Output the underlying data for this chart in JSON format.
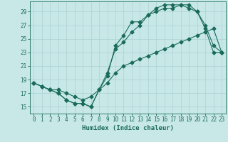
{
  "xlabel": "Humidex (Indice chaleur)",
  "bg_color": "#c8e8e8",
  "grid_color": "#afd4d4",
  "line_color": "#1a6b5a",
  "xlim": [
    -0.5,
    23.5
  ],
  "ylim": [
    14.0,
    30.5
  ],
  "xticks": [
    0,
    1,
    2,
    3,
    4,
    5,
    6,
    7,
    8,
    9,
    10,
    11,
    12,
    13,
    14,
    15,
    16,
    17,
    18,
    19,
    20,
    21,
    22,
    23
  ],
  "yticks": [
    15,
    17,
    19,
    21,
    23,
    25,
    27,
    29
  ],
  "line1_x": [
    0,
    1,
    2,
    3,
    4,
    5,
    6,
    7,
    8,
    9,
    10,
    11,
    12,
    13,
    14,
    15,
    16,
    17,
    18,
    19,
    20,
    21,
    22,
    23
  ],
  "line1_y": [
    18.5,
    18.0,
    17.5,
    17.0,
    16.0,
    15.5,
    15.5,
    15.0,
    17.5,
    19.5,
    24.0,
    25.5,
    27.5,
    27.5,
    28.5,
    29.5,
    30.0,
    30.0,
    30.0,
    30.0,
    29.0,
    26.5,
    23.0,
    23.0
  ],
  "line2_x": [
    0,
    1,
    2,
    3,
    4,
    5,
    6,
    7,
    8,
    9,
    10,
    11,
    12,
    13,
    14,
    15,
    16,
    17,
    18,
    19,
    20,
    21,
    22,
    23
  ],
  "line2_y": [
    18.5,
    18.0,
    17.5,
    17.5,
    17.0,
    16.5,
    16.0,
    16.5,
    17.5,
    20.0,
    23.5,
    24.5,
    26.0,
    27.0,
    28.5,
    29.0,
    29.5,
    29.5,
    30.0,
    29.5,
    29.0,
    27.0,
    24.0,
    23.0
  ],
  "line3_x": [
    0,
    1,
    2,
    3,
    4,
    5,
    6,
    7,
    8,
    9,
    10,
    11,
    12,
    13,
    14,
    15,
    16,
    17,
    18,
    19,
    20,
    21,
    22,
    23
  ],
  "line3_y": [
    18.5,
    18.0,
    17.5,
    17.0,
    16.0,
    15.5,
    15.5,
    15.0,
    17.5,
    18.5,
    20.0,
    21.0,
    21.5,
    22.0,
    22.5,
    23.0,
    23.5,
    24.0,
    24.5,
    25.0,
    25.5,
    26.0,
    26.5,
    23.0
  ]
}
